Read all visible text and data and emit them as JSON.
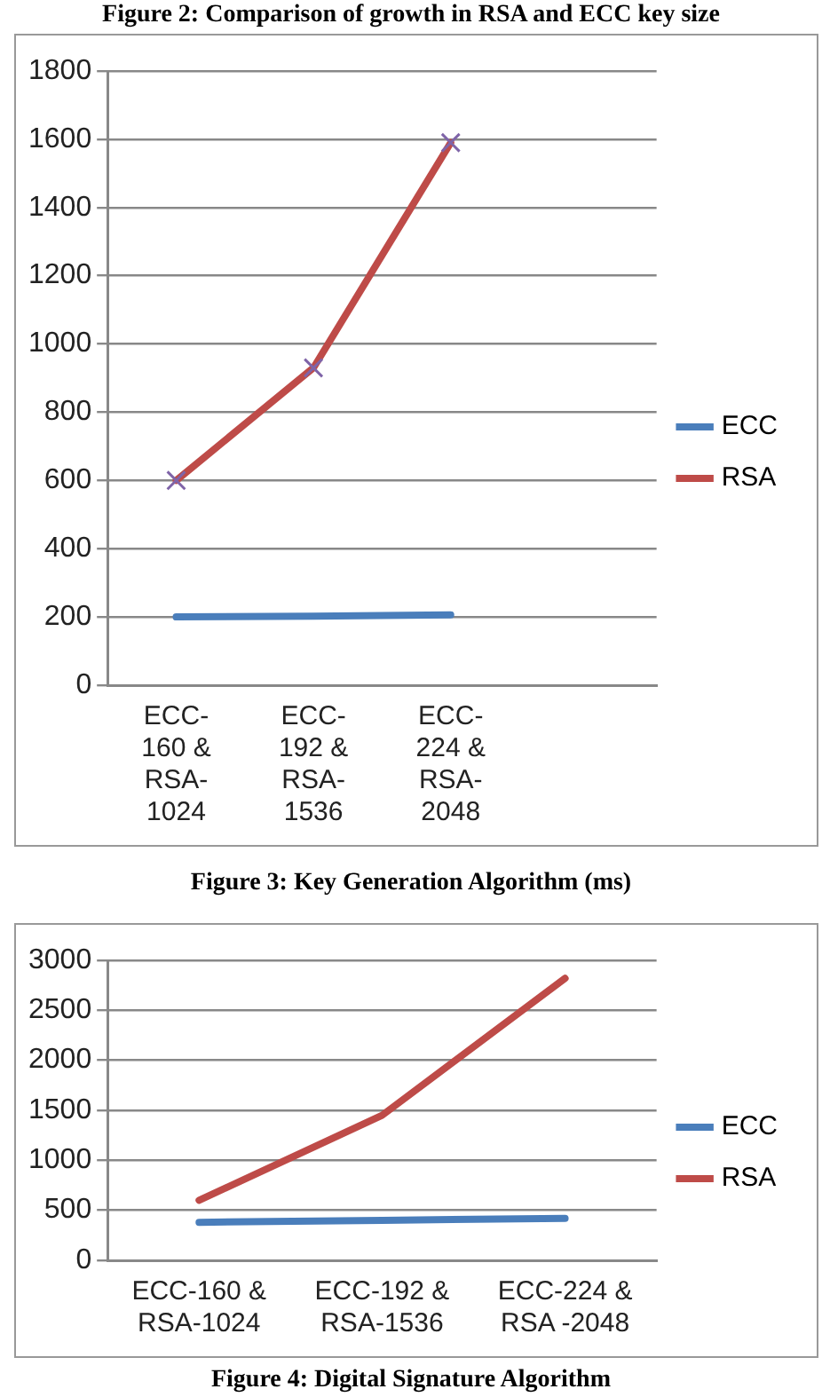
{
  "chart_data": [
    {
      "type": "line",
      "categories": [
        "ECC-160 & RSA-1024",
        "ECC-192 & RSA-1536",
        "ECC-224 & RSA-2048",
        null
      ],
      "series": [
        {
          "name": "ECC",
          "color": "#4a7ebb",
          "values": [
            200,
            202,
            206,
            null
          ],
          "marker": "none"
        },
        {
          "name": "RSA",
          "color": "#be4b48",
          "values": [
            600,
            930,
            1590,
            null
          ],
          "marker": "cross"
        }
      ],
      "ylim": [
        0,
        1800
      ],
      "yticks": [
        0,
        200,
        400,
        600,
        800,
        1000,
        1200,
        1400,
        1600,
        1800
      ],
      "grid": "y",
      "legend": "right",
      "annotations": [
        "Figure 2: Comparison of growth in RSA and ECC key size",
        "Figure 3: Key Generation Algorithm (ms)"
      ]
    },
    {
      "type": "line",
      "categories": [
        "ECC-160 & RSA-1024",
        "ECC-192 & RSA-1536",
        "ECC-224 & RSA -2048"
      ],
      "series": [
        {
          "name": "ECC",
          "color": "#4a7ebb",
          "values": [
            380,
            400,
            420
          ],
          "marker": "none"
        },
        {
          "name": "RSA",
          "color": "#be4b48",
          "values": [
            600,
            1450,
            2820
          ],
          "marker": "none"
        }
      ],
      "ylim": [
        0,
        3000
      ],
      "yticks": [
        0,
        500,
        1000,
        1500,
        2000,
        2500,
        3000
      ],
      "grid": "y",
      "legend": "right",
      "annotations": [
        "Figure 4: Digital Signature Algorithm"
      ]
    }
  ]
}
